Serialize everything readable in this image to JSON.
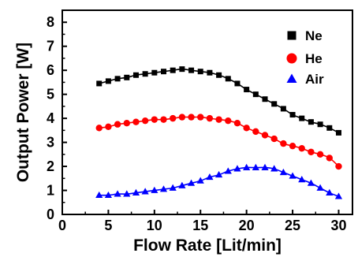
{
  "chart_data": {
    "type": "line",
    "title": "",
    "xlabel": "Flow Rate [Lit/min]",
    "ylabel": "Output Power [W]",
    "xlim": [
      0,
      31.5
    ],
    "ylim": [
      0,
      8.5
    ],
    "xticks": [
      "0",
      "5",
      "10",
      "15",
      "20",
      "25",
      "30"
    ],
    "yticks": [
      "0",
      "1",
      "2",
      "3",
      "4",
      "5",
      "6",
      "7",
      "8"
    ],
    "grid": false,
    "legend_position": "top-right",
    "series": [
      {
        "name": "Ne",
        "marker": "square",
        "color": "#000000",
        "x": [
          4,
          5,
          6,
          7,
          8,
          9,
          10,
          11,
          12,
          13,
          14,
          15,
          16,
          17,
          18,
          19,
          20,
          21,
          22,
          23,
          24,
          25,
          26,
          27,
          28,
          29,
          30
        ],
        "y": [
          5.45,
          5.55,
          5.65,
          5.7,
          5.8,
          5.85,
          5.9,
          5.95,
          6.0,
          6.05,
          6.0,
          5.95,
          5.9,
          5.8,
          5.65,
          5.45,
          5.2,
          5.0,
          4.8,
          4.6,
          4.4,
          4.15,
          4.0,
          3.85,
          3.75,
          3.6,
          3.4
        ]
      },
      {
        "name": "He",
        "marker": "circle",
        "color": "#ff0000",
        "x": [
          4,
          5,
          6,
          7,
          8,
          9,
          10,
          11,
          12,
          13,
          14,
          15,
          16,
          17,
          18,
          19,
          20,
          21,
          22,
          23,
          24,
          25,
          26,
          27,
          28,
          29,
          30
        ],
        "y": [
          3.6,
          3.65,
          3.75,
          3.8,
          3.85,
          3.9,
          3.95,
          3.95,
          4.0,
          4.05,
          4.05,
          4.05,
          4.0,
          3.95,
          3.9,
          3.8,
          3.6,
          3.45,
          3.3,
          3.15,
          2.95,
          2.85,
          2.75,
          2.6,
          2.5,
          2.35,
          2.0
        ]
      },
      {
        "name": "Air",
        "marker": "triangle",
        "color": "#0000ff",
        "x": [
          4,
          5,
          6,
          7,
          8,
          9,
          10,
          11,
          12,
          13,
          14,
          15,
          16,
          17,
          18,
          19,
          20,
          21,
          22,
          23,
          24,
          25,
          26,
          27,
          28,
          29,
          30
        ],
        "y": [
          0.8,
          0.8,
          0.85,
          0.85,
          0.9,
          0.95,
          1.0,
          1.05,
          1.1,
          1.2,
          1.3,
          1.4,
          1.55,
          1.65,
          1.8,
          1.9,
          1.95,
          1.95,
          1.95,
          1.9,
          1.75,
          1.6,
          1.45,
          1.3,
          1.1,
          0.9,
          0.75
        ]
      }
    ]
  }
}
